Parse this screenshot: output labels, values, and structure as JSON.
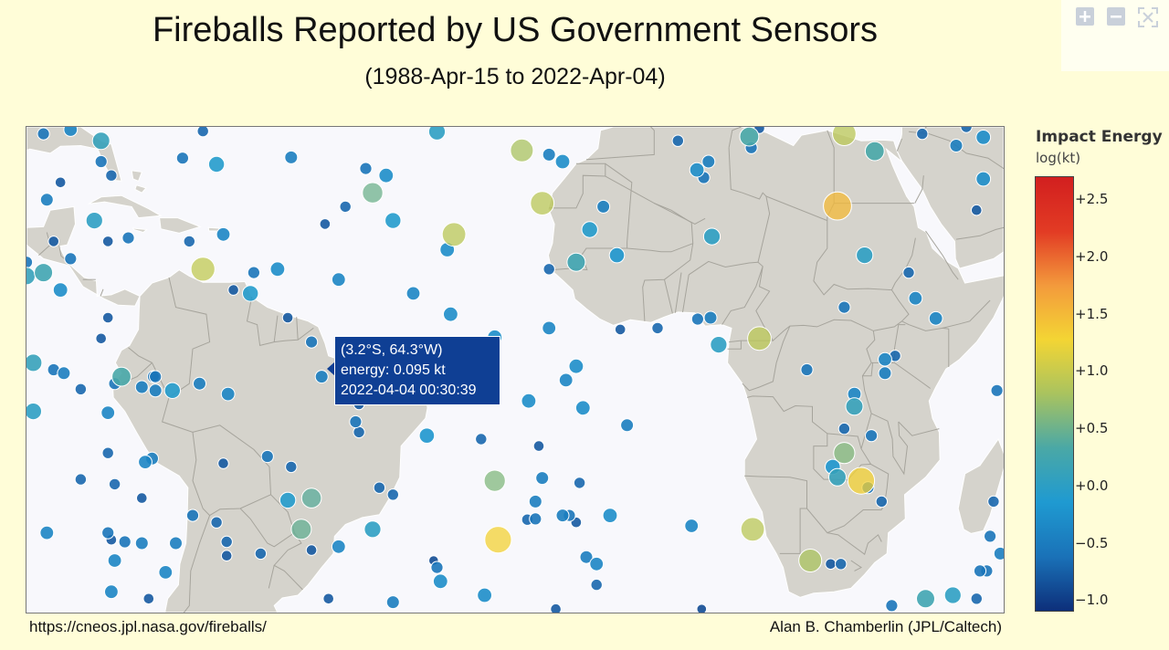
{
  "header": {
    "title": "Fireballs Reported by US Government Sensors",
    "subtitle": "(1988-Apr-15 to 2022-Apr-04)"
  },
  "toolbar": {
    "buttons": [
      {
        "name": "zoom-in",
        "icon": "plus-icon"
      },
      {
        "name": "zoom-out",
        "icon": "minus-icon"
      },
      {
        "name": "reset",
        "icon": "autoscale-icon"
      }
    ]
  },
  "tooltip": {
    "line1": "(3.2°S, 64.3°W)",
    "line2": "energy: 0.095 kt",
    "line3": "2022-04-04 00:30:39"
  },
  "footer": {
    "left": "https://cneos.jpl.nasa.gov/fireballs/",
    "right": "Alan B. Chamberlin (JPL/Caltech)"
  },
  "colorbar": {
    "title": "Impact Energy",
    "unit": "log(kt)",
    "range": [
      -1.1,
      2.7
    ],
    "ticks": [
      {
        "value": 2.5,
        "label": "+2.5"
      },
      {
        "value": 2.0,
        "label": "+2.0"
      },
      {
        "value": 1.5,
        "label": "+1.5"
      },
      {
        "value": 1.0,
        "label": "+1.0"
      },
      {
        "value": 0.5,
        "label": "+0.5"
      },
      {
        "value": 0.0,
        "label": "+0.0"
      },
      {
        "value": -0.5,
        "label": "−0.5"
      },
      {
        "value": -1.0,
        "label": "−1.0"
      }
    ],
    "colors": [
      "#0d2f7a",
      "#1a72b8",
      "#1f9ad1",
      "#4aa8a6",
      "#a9c35f",
      "#f3d534",
      "#f39a3c",
      "#e23b24",
      "#d21f1f"
    ]
  },
  "map": {
    "view": {
      "lon_min": -94,
      "lon_max": 50,
      "lat_min": -37,
      "lat_max": 33
    },
    "land_color": "#d5d3cc",
    "ocean_color": "#f8f8fc",
    "border_color": "#a6a49c",
    "fireballs": [
      {
        "lat": 32.6,
        "lon": -87.5,
        "e": -0.4
      },
      {
        "lat": 31.0,
        "lon": -83.0,
        "e": 0.1
      },
      {
        "lat": 32.4,
        "lon": -68.0,
        "e": -0.7
      },
      {
        "lat": 27.6,
        "lon": -66.0,
        "e": -0.1
      },
      {
        "lat": 25.0,
        "lon": -89.0,
        "e": -0.8
      },
      {
        "lat": 28.6,
        "lon": -55.0,
        "e": -0.5
      },
      {
        "lat": 27.0,
        "lon": -44.0,
        "e": -0.6
      },
      {
        "lat": 26.0,
        "lon": -41.0,
        "e": -0.3
      },
      {
        "lat": 29.6,
        "lon": -21.0,
        "e": 0.8
      },
      {
        "lat": 32.3,
        "lon": -33.5,
        "e": 0.0
      },
      {
        "lat": 29.0,
        "lon": -17.0,
        "e": -0.5
      },
      {
        "lat": 28.0,
        "lon": -15.0,
        "e": -0.3
      },
      {
        "lat": 23.5,
        "lon": -43.0,
        "e": 0.5
      },
      {
        "lat": 22.0,
        "lon": -18.0,
        "e": 0.9
      },
      {
        "lat": 19.5,
        "lon": -40.0,
        "e": -0.1
      },
      {
        "lat": 21.5,
        "lon": -47.0,
        "e": -0.7
      },
      {
        "lat": 19.0,
        "lon": -50.0,
        "e": -0.8
      },
      {
        "lat": 17.5,
        "lon": -31.0,
        "e": 0.9
      },
      {
        "lat": 14.5,
        "lon": -7.0,
        "e": -0.2
      },
      {
        "lat": 15.3,
        "lon": -32.0,
        "e": -0.3
      },
      {
        "lat": 12.5,
        "lon": -68.0,
        "e": 0.95
      },
      {
        "lat": 12.5,
        "lon": -57.0,
        "e": -0.3
      },
      {
        "lat": 11.0,
        "lon": -48.0,
        "e": -0.4
      },
      {
        "lat": 9.0,
        "lon": -37.0,
        "e": -0.4
      },
      {
        "lat": 6.0,
        "lon": -31.5,
        "e": -0.3
      },
      {
        "lat": 2.7,
        "lon": -25.0,
        "e": -0.3
      },
      {
        "lat": 21.5,
        "lon": -9.0,
        "e": -0.5
      },
      {
        "lat": 12.5,
        "lon": -17.0,
        "e": -0.7
      },
      {
        "lat": 13.5,
        "lon": -13.0,
        "e": 0.2
      },
      {
        "lat": 18.2,
        "lon": -11.0,
        "e": -0.1
      },
      {
        "lat": 17.2,
        "lon": 7.0,
        "e": 0.0
      },
      {
        "lat": 26.8,
        "lon": 4.8,
        "e": -0.3
      },
      {
        "lat": 25.7,
        "lon": 5.8,
        "e": -0.6
      },
      {
        "lat": 31.6,
        "lon": 12.5,
        "e": 0.3
      },
      {
        "lat": 30.0,
        "lon": 12.8,
        "e": -0.6
      },
      {
        "lat": 28.0,
        "lon": 6.5,
        "e": -0.5
      },
      {
        "lat": 32.0,
        "lon": 26.5,
        "e": 0.9
      },
      {
        "lat": 29.5,
        "lon": 31.0,
        "e": 0.3
      },
      {
        "lat": 21.6,
        "lon": 25.5,
        "e": 1.5
      },
      {
        "lat": 14.5,
        "lon": 29.5,
        "e": 0.0
      },
      {
        "lat": 12.0,
        "lon": 36.0,
        "e": -0.7
      },
      {
        "lat": 30.3,
        "lon": 43.0,
        "e": -0.5
      },
      {
        "lat": 32.0,
        "lon": 38.0,
        "e": -0.7
      },
      {
        "lat": 25.5,
        "lon": 47.0,
        "e": -0.3
      },
      {
        "lat": 21.0,
        "lon": 46.0,
        "e": -0.8
      },
      {
        "lat": 31.5,
        "lon": 47.0,
        "e": -0.3
      },
      {
        "lat": 31.0,
        "lon": 2.0,
        "e": -0.7
      },
      {
        "lat": 33.0,
        "lon": 44.5,
        "e": -0.7
      },
      {
        "lat": 32.8,
        "lon": 14.0,
        "e": -0.8
      },
      {
        "lat": 8.3,
        "lon": 37.0,
        "e": -0.4
      },
      {
        "lat": 5.5,
        "lon": 6.8,
        "e": -0.5
      },
      {
        "lat": 5.3,
        "lon": 4.9,
        "e": -0.6
      },
      {
        "lat": 4.0,
        "lon": -1.0,
        "e": -0.7
      },
      {
        "lat": 3.8,
        "lon": -6.5,
        "e": -0.8
      },
      {
        "lat": 4.0,
        "lon": -17.0,
        "e": -0.4
      },
      {
        "lat": 2.5,
        "lon": 14.0,
        "e": 0.9
      },
      {
        "lat": 1.6,
        "lon": 8.0,
        "e": 0.0
      },
      {
        "lat": 5.4,
        "lon": 40.0,
        "e": -0.4
      },
      {
        "lat": 7.0,
        "lon": 26.5,
        "e": -0.6
      },
      {
        "lat": 0.0,
        "lon": 34.0,
        "e": -0.7
      },
      {
        "lat": -0.5,
        "lon": 32.5,
        "e": -0.4
      },
      {
        "lat": -1.5,
        "lon": -13.0,
        "e": -0.3
      },
      {
        "lat": -3.5,
        "lon": -14.5,
        "e": -0.4
      },
      {
        "lat": -3.0,
        "lon": -75.3,
        "e": -0.6
      },
      {
        "lat": -4.0,
        "lon": -81.0,
        "e": -0.6
      },
      {
        "lat": -4.5,
        "lon": -77.0,
        "e": -0.5
      },
      {
        "lat": -5.0,
        "lon": -75.0,
        "e": -0.5
      },
      {
        "lat": -5.5,
        "lon": -64.3,
        "e": -0.4
      },
      {
        "lat": -4.0,
        "lon": -68.5,
        "e": -0.5
      },
      {
        "lat": -5.0,
        "lon": -72.5,
        "e": -0.1
      },
      {
        "lat": -3.0,
        "lon": -75.0,
        "e": -0.6
      },
      {
        "lat": -2.5,
        "lon": -88.5,
        "e": -0.5
      },
      {
        "lat": -2.0,
        "lon": -90.0,
        "e": -0.6
      },
      {
        "lat": -3.0,
        "lon": -80.0,
        "e": 0.3
      },
      {
        "lat": -4.8,
        "lon": -86.0,
        "e": -0.7
      },
      {
        "lat": -1.0,
        "lon": -93.0,
        "e": 0.1
      },
      {
        "lat": -6.0,
        "lon": -26.0,
        "e": -0.3
      },
      {
        "lat": -2.3,
        "lon": -35.0,
        "e": -0.3
      },
      {
        "lat": -6.5,
        "lon": -20.0,
        "e": -0.3
      },
      {
        "lat": -8.2,
        "lon": -82.0,
        "e": -0.4
      },
      {
        "lat": -8.0,
        "lon": -93.0,
        "e": 0.0
      },
      {
        "lat": -7.5,
        "lon": -12.0,
        "e": -0.3
      },
      {
        "lat": -5.0,
        "lon": -37.0,
        "e": -0.5
      },
      {
        "lat": -2.0,
        "lon": 21.0,
        "e": -0.6
      },
      {
        "lat": -5.5,
        "lon": 28.0,
        "e": -0.4
      },
      {
        "lat": -2.5,
        "lon": 32.5,
        "e": -0.5
      },
      {
        "lat": -7.3,
        "lon": 28.0,
        "e": 0.1
      },
      {
        "lat": -10.5,
        "lon": 26.5,
        "e": -0.7
      },
      {
        "lat": -11.5,
        "lon": 30.5,
        "e": -0.6
      },
      {
        "lat": -14.0,
        "lon": 26.5,
        "e": 0.6
      },
      {
        "lat": -16.0,
        "lon": 24.8,
        "e": -0.2
      },
      {
        "lat": -17.5,
        "lon": 25.5,
        "e": 0.1
      },
      {
        "lat": -18.0,
        "lon": 29.0,
        "e": 1.3
      },
      {
        "lat": -19.0,
        "lon": 30.0,
        "e": -0.6
      },
      {
        "lat": -21.0,
        "lon": 32.0,
        "e": -0.7
      },
      {
        "lat": -3.0,
        "lon": -50.5,
        "e": -0.5
      },
      {
        "lat": -9.5,
        "lon": -45.5,
        "e": -0.6
      },
      {
        "lat": -11.5,
        "lon": -35.0,
        "e": -0.2
      },
      {
        "lat": -11.0,
        "lon": -45.0,
        "e": -0.7
      },
      {
        "lat": -12.0,
        "lon": -27.0,
        "e": -0.7
      },
      {
        "lat": -14.0,
        "lon": -82.0,
        "e": -0.7
      },
      {
        "lat": -14.8,
        "lon": -75.5,
        "e": -0.5
      },
      {
        "lat": -15.3,
        "lon": -76.5,
        "e": -0.4
      },
      {
        "lat": -15.5,
        "lon": -65.0,
        "e": -0.8
      },
      {
        "lat": -14.5,
        "lon": -58.5,
        "e": -0.6
      },
      {
        "lat": -16.0,
        "lon": -55.0,
        "e": -0.7
      },
      {
        "lat": -17.8,
        "lon": -86.0,
        "e": -0.7
      },
      {
        "lat": -18.5,
        "lon": -81.0,
        "e": -0.7
      },
      {
        "lat": -18.0,
        "lon": -25.0,
        "e": 0.6
      },
      {
        "lat": -19.0,
        "lon": -42.0,
        "e": -0.7
      },
      {
        "lat": -17.6,
        "lon": -18.0,
        "e": -0.5
      },
      {
        "lat": -18.3,
        "lon": -12.5,
        "e": -0.7
      },
      {
        "lat": -20.5,
        "lon": -77.0,
        "e": -0.8
      },
      {
        "lat": -20.8,
        "lon": -55.5,
        "e": -0.1
      },
      {
        "lat": -20.5,
        "lon": -52.0,
        "e": 0.4
      },
      {
        "lat": -20.0,
        "lon": -40.0,
        "e": -0.7
      },
      {
        "lat": -21.0,
        "lon": -19.0,
        "e": -0.5
      },
      {
        "lat": -23.0,
        "lon": -69.5,
        "e": -0.6
      },
      {
        "lat": -23.0,
        "lon": -8.0,
        "e": -0.3
      },
      {
        "lat": -23.0,
        "lon": -15.0,
        "e": -0.5
      },
      {
        "lat": -23.0,
        "lon": -14.0,
        "e": -0.6
      },
      {
        "lat": -23.5,
        "lon": -19.0,
        "e": -0.6
      },
      {
        "lat": -23.6,
        "lon": -20.2,
        "e": -0.7
      },
      {
        "lat": -24.0,
        "lon": -66.0,
        "e": -0.7
      },
      {
        "lat": -25.0,
        "lon": -53.5,
        "e": 0.45
      },
      {
        "lat": -25.0,
        "lon": -43.0,
        "e": 0.0
      },
      {
        "lat": -24.0,
        "lon": -13.0,
        "e": -0.8
      },
      {
        "lat": -24.5,
        "lon": 4.0,
        "e": -0.4
      },
      {
        "lat": -25.0,
        "lon": 13.0,
        "e": 0.9
      },
      {
        "lat": -25.5,
        "lon": -91.0,
        "e": -0.4
      },
      {
        "lat": -25.5,
        "lon": -82.0,
        "e": -0.6
      },
      {
        "lat": -26.5,
        "lon": -81.5,
        "e": -0.8
      },
      {
        "lat": -26.8,
        "lon": -79.5,
        "e": -0.6
      },
      {
        "lat": -27.0,
        "lon": -77.0,
        "e": -0.5
      },
      {
        "lat": -27.0,
        "lon": -72.0,
        "e": -0.5
      },
      {
        "lat": -26.8,
        "lon": -64.5,
        "e": -0.7
      },
      {
        "lat": -26.5,
        "lon": -24.5,
        "e": 1.3
      },
      {
        "lat": -27.5,
        "lon": -48.0,
        "e": -0.4
      },
      {
        "lat": -28.5,
        "lon": -59.5,
        "e": -0.7
      },
      {
        "lat": -28.8,
        "lon": -64.5,
        "e": -0.8
      },
      {
        "lat": -29.5,
        "lon": -81.0,
        "e": -0.4
      },
      {
        "lat": -28.0,
        "lon": -52.0,
        "e": -0.8
      },
      {
        "lat": -29.5,
        "lon": -34.0,
        "e": -0.9
      },
      {
        "lat": -30.5,
        "lon": -33.5,
        "e": -0.6
      },
      {
        "lat": -29.0,
        "lon": -11.5,
        "e": -0.5
      },
      {
        "lat": -30.0,
        "lon": -10.0,
        "e": -0.4
      },
      {
        "lat": -31.2,
        "lon": -73.5,
        "e": -0.4
      },
      {
        "lat": -32.5,
        "lon": -33.0,
        "e": -0.3
      },
      {
        "lat": -33.0,
        "lon": -10.0,
        "e": -0.7
      },
      {
        "lat": -34.0,
        "lon": -81.5,
        "e": -0.4
      },
      {
        "lat": -35.0,
        "lon": -76.0,
        "e": -0.8
      },
      {
        "lat": -34.5,
        "lon": -26.5,
        "e": -0.3
      },
      {
        "lat": -35.5,
        "lon": -40.0,
        "e": -0.5
      },
      {
        "lat": -35.0,
        "lon": -49.5,
        "e": -0.8
      },
      {
        "lat": -36.5,
        "lon": -16.0,
        "e": -0.8
      },
      {
        "lat": -36.5,
        "lon": 5.5,
        "e": -0.9
      },
      {
        "lat": -36.0,
        "lon": 33.5,
        "e": -0.6
      },
      {
        "lat": -35.0,
        "lon": 38.5,
        "e": 0.2
      },
      {
        "lat": -34.5,
        "lon": 42.5,
        "e": 0.0
      },
      {
        "lat": -35.0,
        "lon": 46.0,
        "e": -0.7
      },
      {
        "lat": -31.0,
        "lon": 47.5,
        "e": -0.6
      },
      {
        "lat": -31.0,
        "lon": 46.5,
        "e": -0.6
      },
      {
        "lat": -28.5,
        "lon": 49.5,
        "e": -0.5
      },
      {
        "lat": -26.0,
        "lon": 48.0,
        "e": -0.6
      },
      {
        "lat": -21.0,
        "lon": 48.5,
        "e": -0.7
      },
      {
        "lat": -5.0,
        "lon": 49.0,
        "e": -0.6
      },
      {
        "lat": -29.5,
        "lon": 21.5,
        "e": 0.8
      },
      {
        "lat": -30.0,
        "lon": 24.5,
        "e": -0.8
      },
      {
        "lat": -30.0,
        "lon": 26.0,
        "e": -0.7
      },
      {
        "lat": -10.0,
        "lon": -5.5,
        "e": -0.5
      },
      {
        "lat": -13.0,
        "lon": -18.5,
        "e": -0.8
      },
      {
        "lat": -7.0,
        "lon": -45.0,
        "e": -0.8
      },
      {
        "lat": 2.0,
        "lon": -52.0,
        "e": -0.6
      },
      {
        "lat": 22.5,
        "lon": -91.0,
        "e": -0.5
      },
      {
        "lat": 32.0,
        "lon": -91.5,
        "e": -0.6
      },
      {
        "lat": 14.0,
        "lon": -87.5,
        "e": -0.6
      },
      {
        "lat": 9.5,
        "lon": -89.0,
        "e": -0.3
      },
      {
        "lat": 12.0,
        "lon": -91.5,
        "e": 0.2
      },
      {
        "lat": 11.5,
        "lon": -94.0,
        "e": 0.1
      },
      {
        "lat": 13.5,
        "lon": -94.0,
        "e": -0.6
      },
      {
        "lat": 5.5,
        "lon": -82.0,
        "e": -0.8
      },
      {
        "lat": 2.5,
        "lon": -83.0,
        "e": -0.8
      },
      {
        "lat": 16.5,
        "lon": -90.0,
        "e": -0.8
      },
      {
        "lat": 19.5,
        "lon": -84.0,
        "e": 0.0
      },
      {
        "lat": 17.0,
        "lon": -79.0,
        "e": -0.6
      },
      {
        "lat": 16.5,
        "lon": -82.0,
        "e": -0.8
      },
      {
        "lat": 26.0,
        "lon": -81.5,
        "e": -0.7
      },
      {
        "lat": 28.0,
        "lon": -83.0,
        "e": -0.6
      },
      {
        "lat": 28.5,
        "lon": -71.0,
        "e": -0.6
      },
      {
        "lat": 16.5,
        "lon": -70.0,
        "e": -0.7
      },
      {
        "lat": 17.5,
        "lon": -65.0,
        "e": -0.4
      },
      {
        "lat": 12.0,
        "lon": -60.5,
        "e": -0.6
      },
      {
        "lat": 9.5,
        "lon": -63.5,
        "e": -0.8
      },
      {
        "lat": 9.0,
        "lon": -61.0,
        "e": -0.1
      },
      {
        "lat": 5.5,
        "lon": -55.5,
        "e": -0.8
      }
    ]
  }
}
